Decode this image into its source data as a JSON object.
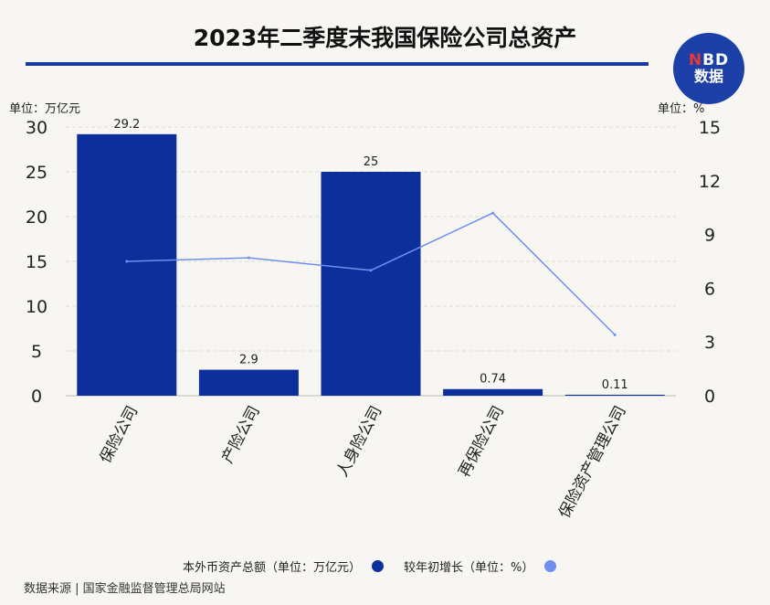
{
  "chart_data": {
    "type": "bar",
    "title": "2023年二季度末我国保险公司总资产",
    "categories": [
      "保险公司",
      "产险公司",
      "人身险公司",
      "再保险公司",
      "保险资产管理公司"
    ],
    "series": [
      {
        "name": "本外币资产总额（单位：万亿元）",
        "type": "bar",
        "axis": "left",
        "color": "#0d2f9c",
        "values": [
          29.2,
          2.9,
          25,
          0.74,
          0.11
        ],
        "labels": [
          "29.2",
          "2.9",
          "25",
          "0.74",
          "0.11"
        ]
      },
      {
        "name": "较年初增长（单位：%）",
        "type": "line",
        "axis": "right",
        "color": "#6f8ef0",
        "values": [
          7.5,
          7.7,
          7.0,
          10.2,
          3.4
        ]
      }
    ],
    "left_axis": {
      "label": "单位：万亿元",
      "range": [
        0,
        30
      ],
      "ticks": [
        0,
        5,
        10,
        15,
        20,
        25,
        30
      ]
    },
    "right_axis": {
      "label": "单位：%",
      "range": [
        0,
        15
      ],
      "ticks": [
        0,
        3,
        6,
        9,
        12,
        15
      ]
    },
    "grid": true,
    "legend_position": "bottom"
  },
  "logo": {
    "line1_n": "N",
    "line1_rest": "BD",
    "line2": "数据"
  },
  "source": "数据来源 | 国家金融监督管理总局网站"
}
